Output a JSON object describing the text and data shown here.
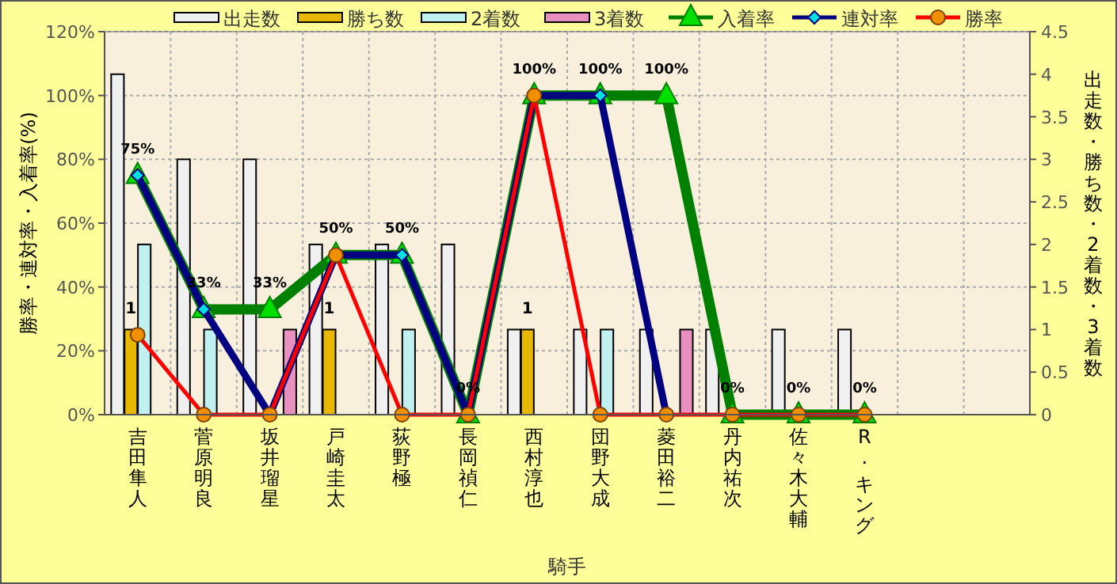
{
  "chart_data": {
    "type": "bar",
    "xlabel": "騎手",
    "ylabel": "勝率・連対率・入着率(%)",
    "y2label": "出走数・勝ち数・2着数・3着数",
    "categories": [
      "吉田隼人",
      "菅原明良",
      "坂井瑠星",
      "戸崎圭太",
      "荻野極",
      "長岡禎仁",
      "西村淳也",
      "団野大成",
      "菱田裕二",
      "丹内祐次",
      "佐々木大輔",
      "R. キング",
      null,
      null
    ],
    "series": [
      {
        "name": "出走数",
        "axis": "y2",
        "color": "#f0f0f0",
        "values": [
          4,
          3,
          3,
          2,
          2,
          2,
          1,
          1,
          1,
          1,
          1,
          1,
          null,
          null
        ]
      },
      {
        "name": "勝ち数",
        "axis": "y2",
        "color": "#e8b800",
        "values": [
          1,
          0,
          0,
          1,
          0,
          0,
          1,
          0,
          0,
          0,
          0,
          0,
          null,
          null
        ],
        "value_labels": [
          "1",
          null,
          null,
          "1",
          null,
          null,
          "1",
          null,
          null,
          null,
          null,
          null,
          null,
          null
        ]
      },
      {
        "name": "2着数",
        "axis": "y2",
        "color": "#c0f0f0",
        "values": [
          2,
          1,
          0,
          0,
          1,
          0,
          0,
          1,
          0,
          0,
          0,
          0,
          null,
          null
        ]
      },
      {
        "name": "3着数",
        "axis": "y2",
        "color": "#e890c0",
        "values": [
          0,
          0,
          1,
          0,
          0,
          0,
          0,
          0,
          1,
          0,
          0,
          0,
          null,
          null
        ]
      },
      {
        "name": "入着率",
        "type": "line",
        "axis": "y",
        "color": "#008000",
        "marker": "triangle",
        "values": [
          75,
          33,
          33,
          50,
          50,
          0,
          100,
          100,
          100,
          0,
          0,
          0,
          null,
          null
        ],
        "value_labels": [
          "75%",
          "33%",
          "33%",
          "50%",
          "50%",
          "0%",
          "100%",
          "100%",
          "100%",
          "0%",
          "0%",
          "0%",
          null,
          null
        ]
      },
      {
        "name": "連対率",
        "type": "line",
        "axis": "y",
        "color": "#000080",
        "marker": "diamond",
        "values": [
          75,
          33,
          0,
          50,
          50,
          0,
          100,
          100,
          0,
          null,
          null,
          null,
          null,
          null
        ]
      },
      {
        "name": "勝率",
        "type": "line",
        "axis": "y",
        "color": "#ff0000",
        "marker": "circle",
        "values": [
          25,
          0,
          0,
          50,
          0,
          0,
          100,
          0,
          0,
          0,
          0,
          0,
          null,
          null
        ]
      }
    ],
    "ylim": [
      0,
      120
    ],
    "yticks": [
      {
        "value": 0,
        "label": "0%"
      },
      {
        "value": 20,
        "label": "20%"
      },
      {
        "value": 40,
        "label": "40%"
      },
      {
        "value": 60,
        "label": "60%"
      },
      {
        "value": 80,
        "label": "80%"
      },
      {
        "value": 100,
        "label": "100%"
      },
      {
        "value": 120,
        "label": "120%"
      }
    ],
    "y2lim": [
      0,
      4.5
    ],
    "y2ticks": [
      0,
      0.5,
      1,
      1.5,
      2,
      2.5,
      3,
      3.5,
      4,
      4.5
    ],
    "grid": true,
    "legend": "top"
  }
}
